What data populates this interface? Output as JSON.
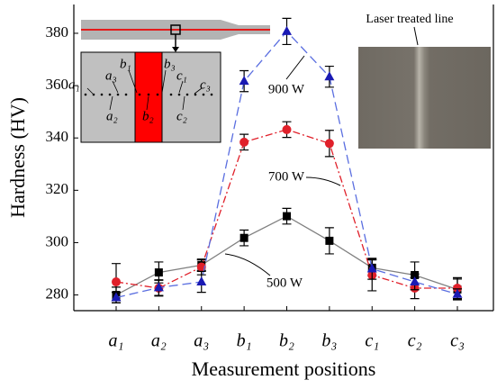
{
  "chart_data": {
    "type": "line",
    "ylabel": "Hardness (HV)",
    "xlabel": "Measurement positions",
    "categories": [
      "a₁",
      "a₂",
      "a₃",
      "b₁",
      "b₂",
      "b₃",
      "c₁",
      "c₂",
      "c₃"
    ],
    "ylim": [
      274,
      391
    ],
    "yticks": [
      280,
      300,
      320,
      340,
      360,
      380
    ],
    "grid": false,
    "series": [
      {
        "name": "500 W",
        "color": "#000000",
        "line_color": "#808080",
        "dash": "solid",
        "marker": "square",
        "values": [
          280,
          288.6,
          291.4,
          301.8,
          310.1,
          300.7,
          290.4,
          287.6,
          282.1
        ],
        "errors": [
          3,
          4,
          2,
          3,
          3,
          5,
          3,
          5,
          4
        ]
      },
      {
        "name": "700 W",
        "color": "#e0202a",
        "line_color": "#e0202a",
        "dash": "dashdot",
        "marker": "circle",
        "values": [
          285,
          282.6,
          290.7,
          338.4,
          343.2,
          337.9,
          287.6,
          282.6,
          282.6
        ],
        "errors": [
          7,
          3,
          3,
          3,
          3,
          5,
          6,
          4,
          4
        ]
      },
      {
        "name": "900 W",
        "color": "#1a1ab4",
        "line_color": "#5a6ee0",
        "dash": "dashed",
        "marker": "triangle",
        "values": [
          279,
          282.8,
          285,
          361.7,
          380.7,
          363.4,
          290,
          285,
          280.3
        ],
        "errors": [
          2,
          3,
          4,
          4,
          5,
          4,
          4,
          3,
          2
        ]
      }
    ],
    "annotations": [
      "Laser treated line"
    ]
  }
}
